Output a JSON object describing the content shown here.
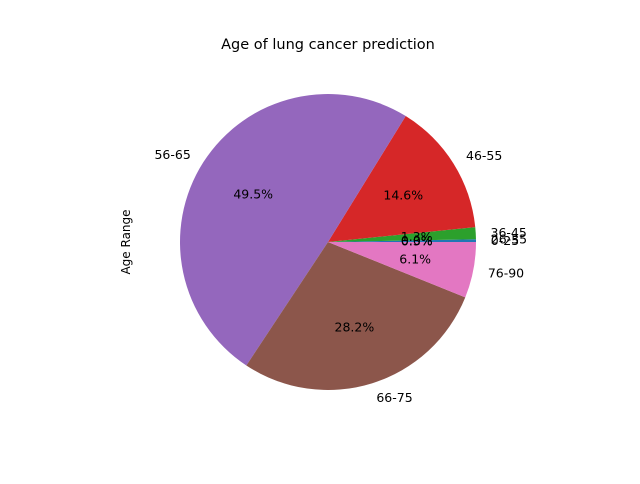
{
  "chart_data": {
    "type": "pie",
    "title": "Age of lung cancer prediction",
    "ylabel": "Age Range",
    "start_angle_deg": 0,
    "direction": "counterclockwise",
    "slices": [
      {
        "label": "0-25",
        "pct_label": "0.3%",
        "value": 0.3,
        "color": "#1f77b4"
      },
      {
        "label": "26-35",
        "pct_label": "0.0%",
        "value": 0.0,
        "color": "#ff7f0e"
      },
      {
        "label": "36-45",
        "pct_label": "1.3%",
        "value": 1.3,
        "color": "#2ca02c"
      },
      {
        "label": "46-55",
        "pct_label": "14.6%",
        "value": 14.6,
        "color": "#d62728"
      },
      {
        "label": "56-65",
        "pct_label": "49.5%",
        "value": 49.5,
        "color": "#9467bd"
      },
      {
        "label": "66-75",
        "pct_label": "28.2%",
        "value": 28.2,
        "color": "#8c564b"
      },
      {
        "label": "76-90",
        "pct_label": "6.1%",
        "value": 6.1,
        "color": "#e377c2"
      }
    ]
  }
}
